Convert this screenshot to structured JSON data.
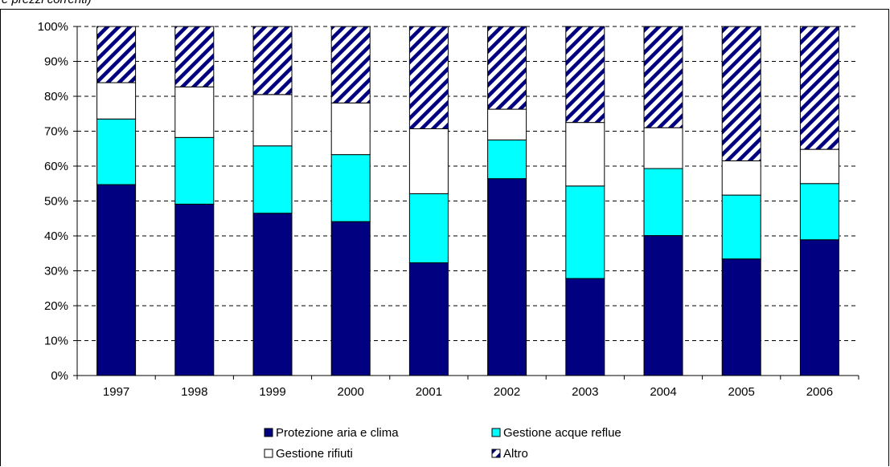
{
  "page": {
    "top_fragment": "e prezzi correnti)"
  },
  "chart_data": {
    "type": "bar",
    "stacked": true,
    "percent": true,
    "title": "",
    "xlabel": "",
    "ylabel": "",
    "ylim": [
      0,
      100
    ],
    "y_ticks": [
      0,
      10,
      20,
      30,
      40,
      50,
      60,
      70,
      80,
      90,
      100
    ],
    "y_tick_suffix": "%",
    "grid": "horizontal-dashed",
    "legend_position": "bottom",
    "categories": [
      "1997",
      "1998",
      "1999",
      "2000",
      "2001",
      "2002",
      "2003",
      "2004",
      "2005",
      "2006"
    ],
    "series": [
      {
        "name": "Protezione aria e clima",
        "color": "#000080",
        "pattern": "solid",
        "values": [
          54.7,
          49.1,
          46.5,
          44.1,
          32.3,
          56.4,
          27.8,
          40.1,
          33.4,
          38.9
        ]
      },
      {
        "name": "Gestione acque reflue",
        "color": "#00ffff",
        "pattern": "solid",
        "values": [
          18.8,
          19.1,
          19.3,
          19.2,
          19.8,
          11.1,
          26.5,
          19.2,
          18.3,
          16.1
        ]
      },
      {
        "name": "Gestione rifiuti",
        "color": "#ffffff",
        "pattern": "solid",
        "values": [
          10.4,
          14.5,
          14.7,
          14.8,
          18.6,
          8.8,
          18.2,
          11.7,
          9.8,
          9.8
        ]
      },
      {
        "name": "Altro",
        "color": "#000080",
        "pattern": "diagonal-stripes",
        "values": [
          16.1,
          17.3,
          19.5,
          21.9,
          29.3,
          23.7,
          27.5,
          29.0,
          38.5,
          35.2
        ]
      }
    ]
  }
}
